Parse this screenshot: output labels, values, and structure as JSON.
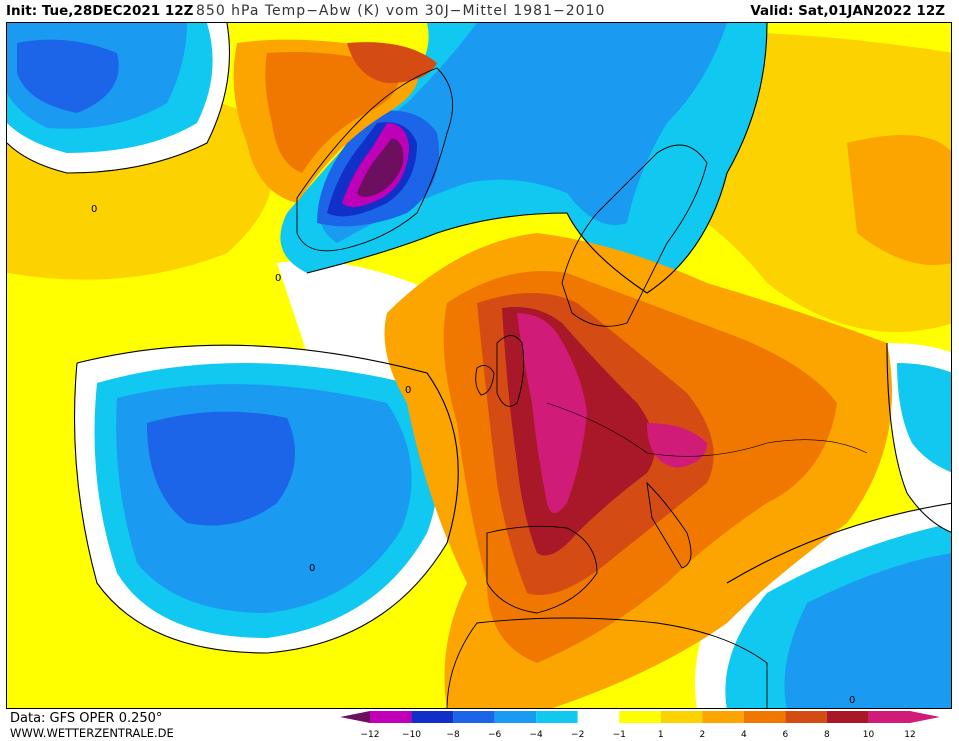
{
  "header": {
    "init": "Init: Tue,28DEC2021 12Z",
    "title": "850 hPa Temp−Abw (K) vom 30J−Mittel 1981−2010",
    "valid": "Valid: Sat,01JAN2022 12Z"
  },
  "footer": {
    "source": "Data: GFS OPER 0.250°",
    "website": "WWW.WETTERZENTRALE.DE"
  },
  "legend": {
    "ticks": [
      "−12",
      "−10",
      "−8",
      "−6",
      "−4",
      "−2",
      "−1",
      "1",
      "2",
      "4",
      "6",
      "8",
      "10",
      "12"
    ],
    "colors": [
      "#6b0f5e",
      "#c000b8",
      "#1030c8",
      "#1c64e8",
      "#1a9af0",
      "#10c8f0",
      "#ffffff",
      "#ffff00",
      "#fcd200",
      "#fca400",
      "#f07800",
      "#d44c14",
      "#a81828",
      "#d01c78"
    ]
  },
  "contour_labels": {
    "zero": "0"
  },
  "colors": {
    "background": "#ffff00",
    "neg1": "#10c8f0",
    "neg2": "#1a9af0",
    "neg3": "#1c64e8",
    "neg4": "#1030c8",
    "neg5": "#c000b8",
    "neg6": "#6b0f5e",
    "pos1": "#fcd200",
    "pos2": "#fca400",
    "pos3": "#f07800",
    "pos4": "#d44c14",
    "pos5": "#a81828",
    "pos6": "#d01c78"
  }
}
